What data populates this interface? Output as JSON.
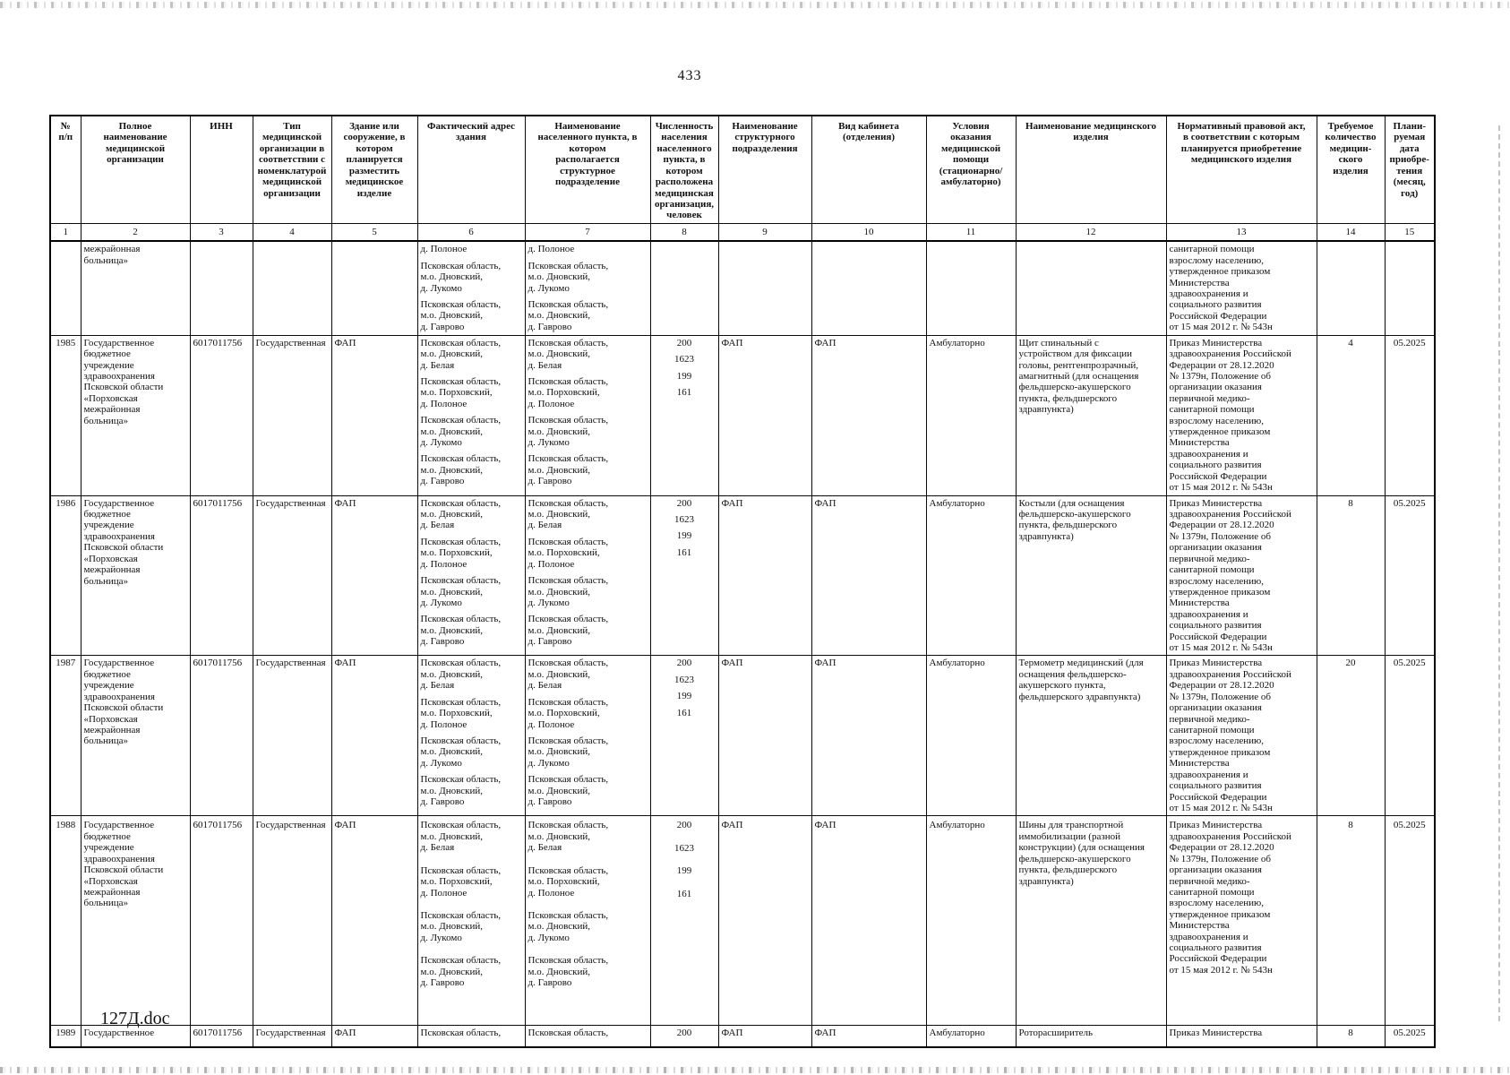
{
  "page": {
    "number": "433",
    "footer": "127Д.doc"
  },
  "table": {
    "columns": [
      {
        "num": "1",
        "label": "№\nп/п"
      },
      {
        "num": "2",
        "label": "Полное\nнаименование\nмедицинской\nорганизации"
      },
      {
        "num": "3",
        "label": "ИНН"
      },
      {
        "num": "4",
        "label": "Тип\nмедицинской\nорганизации в\nсоответствии с\nноменклатурой\nмедицинской\nорганизации"
      },
      {
        "num": "5",
        "label": "Здание или\nсооружение, в\nкотором\nпланируется\nразместить\nмедицинское\nизделие"
      },
      {
        "num": "6",
        "label": "Фактический адрес\nздания"
      },
      {
        "num": "7",
        "label": "Наименование\nнаселенного пункта, в\nкотором\nрасполагается\nструктурное\nподразделение"
      },
      {
        "num": "8",
        "label": "Численность\nнаселения\nнаселенного\nпункта, в\nкотором\nрасположена\nмедицинская\nорганизация,\nчеловек"
      },
      {
        "num": "9",
        "label": "Наименование\nструктурного\nподразделения"
      },
      {
        "num": "10",
        "label": "Вид кабинета\n(отделения)"
      },
      {
        "num": "11",
        "label": "Условия\nоказания\nмедицинской\nпомощи\n(стационарно/\nамбулаторно)"
      },
      {
        "num": "12",
        "label": "Наименование медицинского\nизделия"
      },
      {
        "num": "13",
        "label": "Нормативный правовой акт,\nв соответствии с которым\nпланируется приобретение\nмедицинского изделия"
      },
      {
        "num": "14",
        "label": "Требуемое\nколичество\nмедицин-\nского\nизделия"
      },
      {
        "num": "15",
        "label": "Плани-\nруемая\nдата\nприобре-\nтения\n(месяц,\nгод)"
      }
    ],
    "rows": [
      {
        "c1": "",
        "c2": "межрайонная\nбольница»",
        "c3": "",
        "c4": "",
        "c5": "",
        "c6": [
          "д. Полоное",
          "Псковская область,\nм.о. Дновский,\nд. Лукомо",
          "Псковская область,\nм.о. Дновский,\nд. Гаврово"
        ],
        "c7": [
          "д. Полоное",
          "Псковская область,\nм.о. Дновский,\nд. Лукомо",
          "Псковская область,\nм.о. Дновский,\nд. Гаврово"
        ],
        "c8": [],
        "c9": "",
        "c10": "",
        "c11": "",
        "c12": "",
        "c13": "санитарной помощи\nвзрослому населению,\nутвержденное приказом\nМинистерства\nздравоохранения и\nсоциального развития\nРоссийской Федерации\nот 15 мая 2012 г. № 543н",
        "c14": "",
        "c15": ""
      },
      {
        "c1": "1985",
        "c2": "Государственное\nбюджетное\nучреждение\nздравоохранения\nПсковской области\n«Порховская\nмежрайонная\nбольница»",
        "c3": "6017011756",
        "c4": "Государственная",
        "c5": "ФАП",
        "c6": [
          "Псковская область,\nм.о. Дновский,\nд. Белая",
          "Псковская область,\nм.о. Порховский,\nд. Полоное",
          "Псковская область,\nм.о. Дновский,\nд. Лукомо",
          "Псковская область,\nм.о. Дновский,\nд. Гаврово"
        ],
        "c7": [
          "Псковская область,\nм.о. Дновский,\nд. Белая",
          "Псковская область,\nм.о. Порховский,\nд. Полоное",
          "Псковская область,\nм.о. Дновский,\nд. Лукомо",
          "Псковская область,\nм.о. Дновский,\nд. Гаврово"
        ],
        "c8": [
          "200",
          "1623",
          "199",
          "161"
        ],
        "c9": "ФАП",
        "c10": "ФАП",
        "c11": "Амбулаторно",
        "c12": "Щит спинальный с\nустройством для фиксации\nголовы, рентгенпрозрачный,\nамагнитный (для оснащения\nфельдшерско-акушерского\nпункта, фельдшерского\nздравпункта)",
        "c13": "Приказ Министерства\nздравоохранения Российской\nФедерации от 28.12.2020\n№ 1379н, Положение об\nорганизации оказания\nпервичной медико-\nсанитарной помощи\nвзрослому населению,\nутвержденное приказом\nМинистерства\nздравоохранения и\nсоциального развития\nРоссийской Федерации\nот 15 мая 2012 г. № 543н",
        "c14": "4",
        "c15": "05.2025"
      },
      {
        "c1": "1986",
        "c2": "Государственное\nбюджетное\nучреждение\nздравоохранения\nПсковской области\n«Порховская\nмежрайонная\nбольница»",
        "c3": "6017011756",
        "c4": "Государственная",
        "c5": "ФАП",
        "c6": [
          "Псковская область,\nм.о. Дновский,\nд. Белая",
          "Псковская область,\nм.о. Порховский,\nд. Полоное",
          "Псковская область,\nм.о. Дновский,\nд. Лукомо",
          "Псковская область,\nм.о. Дновский,\nд. Гаврово"
        ],
        "c7": [
          "Псковская область,\nм.о. Дновский,\nд. Белая",
          "Псковская область,\nм.о. Порховский,\nд. Полоное",
          "Псковская область,\nм.о. Дновский,\nд. Лукомо",
          "Псковская область,\nм.о. Дновский,\nд. Гаврово"
        ],
        "c8": [
          "200",
          "1623",
          "199",
          "161"
        ],
        "c9": "ФАП",
        "c10": "ФАП",
        "c11": "Амбулаторно",
        "c12": "Костыли (для оснащения\nфельдшерско-акушерского\nпункта, фельдшерского\nздравпункта)",
        "c13": "Приказ Министерства\nздравоохранения Российской\nФедерации от 28.12.2020\n№ 1379н, Положение об\nорганизации оказания\nпервичной медико-\nсанитарной помощи\nвзрослому населению,\nутвержденное приказом\nМинистерства\nздравоохранения и\nсоциального развития\nРоссийской Федерации\nот 15 мая 2012 г. № 543н",
        "c14": "8",
        "c15": "05.2025"
      },
      {
        "c1": "1987",
        "c2": "Государственное\nбюджетное\nучреждение\nздравоохранения\nПсковской области\n«Порховская\nмежрайонная\nбольница»",
        "c3": "6017011756",
        "c4": "Государственная",
        "c5": "ФАП",
        "c6": [
          "Псковская область,\nм.о. Дновский,\nд. Белая",
          "Псковская область,\nм.о. Порховский,\nд. Полоное",
          "Псковская область,\nм.о. Дновский,\nд. Лукомо",
          "Псковская область,\nм.о. Дновский,\nд. Гаврово"
        ],
        "c7": [
          "Псковская область,\nм.о. Дновский,\nд. Белая",
          "Псковская область,\nм.о. Порховский,\nд. Полоное",
          "Псковская область,\nм.о. Дновский,\nд. Лукомо",
          "Псковская область,\nм.о. Дновский,\nд. Гаврово"
        ],
        "c8": [
          "200",
          "1623",
          "199",
          "161"
        ],
        "c9": "ФАП",
        "c10": "ФАП",
        "c11": "Амбулаторно",
        "c12": "Термометр медицинский (для\nоснащения фельдшерско-\nакушерского пункта,\nфельдшерского здравпункта)",
        "c13": "Приказ Министерства\nздравоохранения Российской\nФедерации от 28.12.2020\n№ 1379н, Положение об\nорганизации оказания\nпервичной медико-\nсанитарной помощи\nвзрослому населению,\nутвержденное приказом\nМинистерства\nздравоохранения и\nсоциального развития\nРоссийской Федерации\nот 15 мая 2012 г. № 543н",
        "c14": "20",
        "c15": "05.2025"
      },
      {
        "c1": "1988",
        "c2": "Государственное\nбюджетное\nучреждение\nздравоохранения\nПсковской области\n«Порховская\nмежрайонная\nбольница»",
        "c3": "6017011756",
        "c4": "Государственная",
        "c5": "ФАП",
        "c6": [
          "Псковская область,\nм.о. Дновский,\nд. Белая",
          "Псковская область,\nм.о. Порховский,\nд. Полоное",
          "Псковская область,\nм.о. Дновский,\nд. Лукомо",
          "Псковская область,\nм.о. Дновский,\nд. Гаврово"
        ],
        "c7": [
          "Псковская область,\nм.о. Дновский,\nд. Белая",
          "Псковская область,\nм.о. Порховский,\nд. Полоное",
          "Псковская область,\nм.о. Дновский,\nд. Лукомо",
          "Псковская область,\nм.о. Дновский,\nд. Гаврово"
        ],
        "c8": [
          "200",
          "1623",
          "199",
          "161"
        ],
        "c9": "ФАП",
        "c10": "ФАП",
        "c11": "Амбулаторно",
        "c12": "Шины для транспортной\nиммобилизации (разной\nконструкции) (для оснащения\nфельдшерско-акушерского\nпункта, фельдшерского\nздравпункта)",
        "c13": "Приказ Министерства\nздравоохранения Российской\nФедерации от 28.12.2020\n№ 1379н, Положение об\nорганизации оказания\nпервичной медико-\nсанитарной помощи\nвзрослому населению,\nутвержденное приказом\nМинистерства\nздравоохранения и\nсоциального развития\nРоссийской Федерации\nот 15 мая 2012 г. № 543н",
        "c14": "8",
        "c15": "05.2025"
      },
      {
        "c1": "1989",
        "c2": "Государственное",
        "c3": "6017011756",
        "c4": "Государственная",
        "c5": "ФАП",
        "c6": [
          "Псковская область,"
        ],
        "c7": [
          "Псковская область,"
        ],
        "c8": [
          "200"
        ],
        "c9": "ФАП",
        "c10": "ФАП",
        "c11": "Амбулаторно",
        "c12": "Роторасширитель",
        "c13": "Приказ Министерства",
        "c14": "8",
        "c15": "05.2025"
      }
    ]
  }
}
